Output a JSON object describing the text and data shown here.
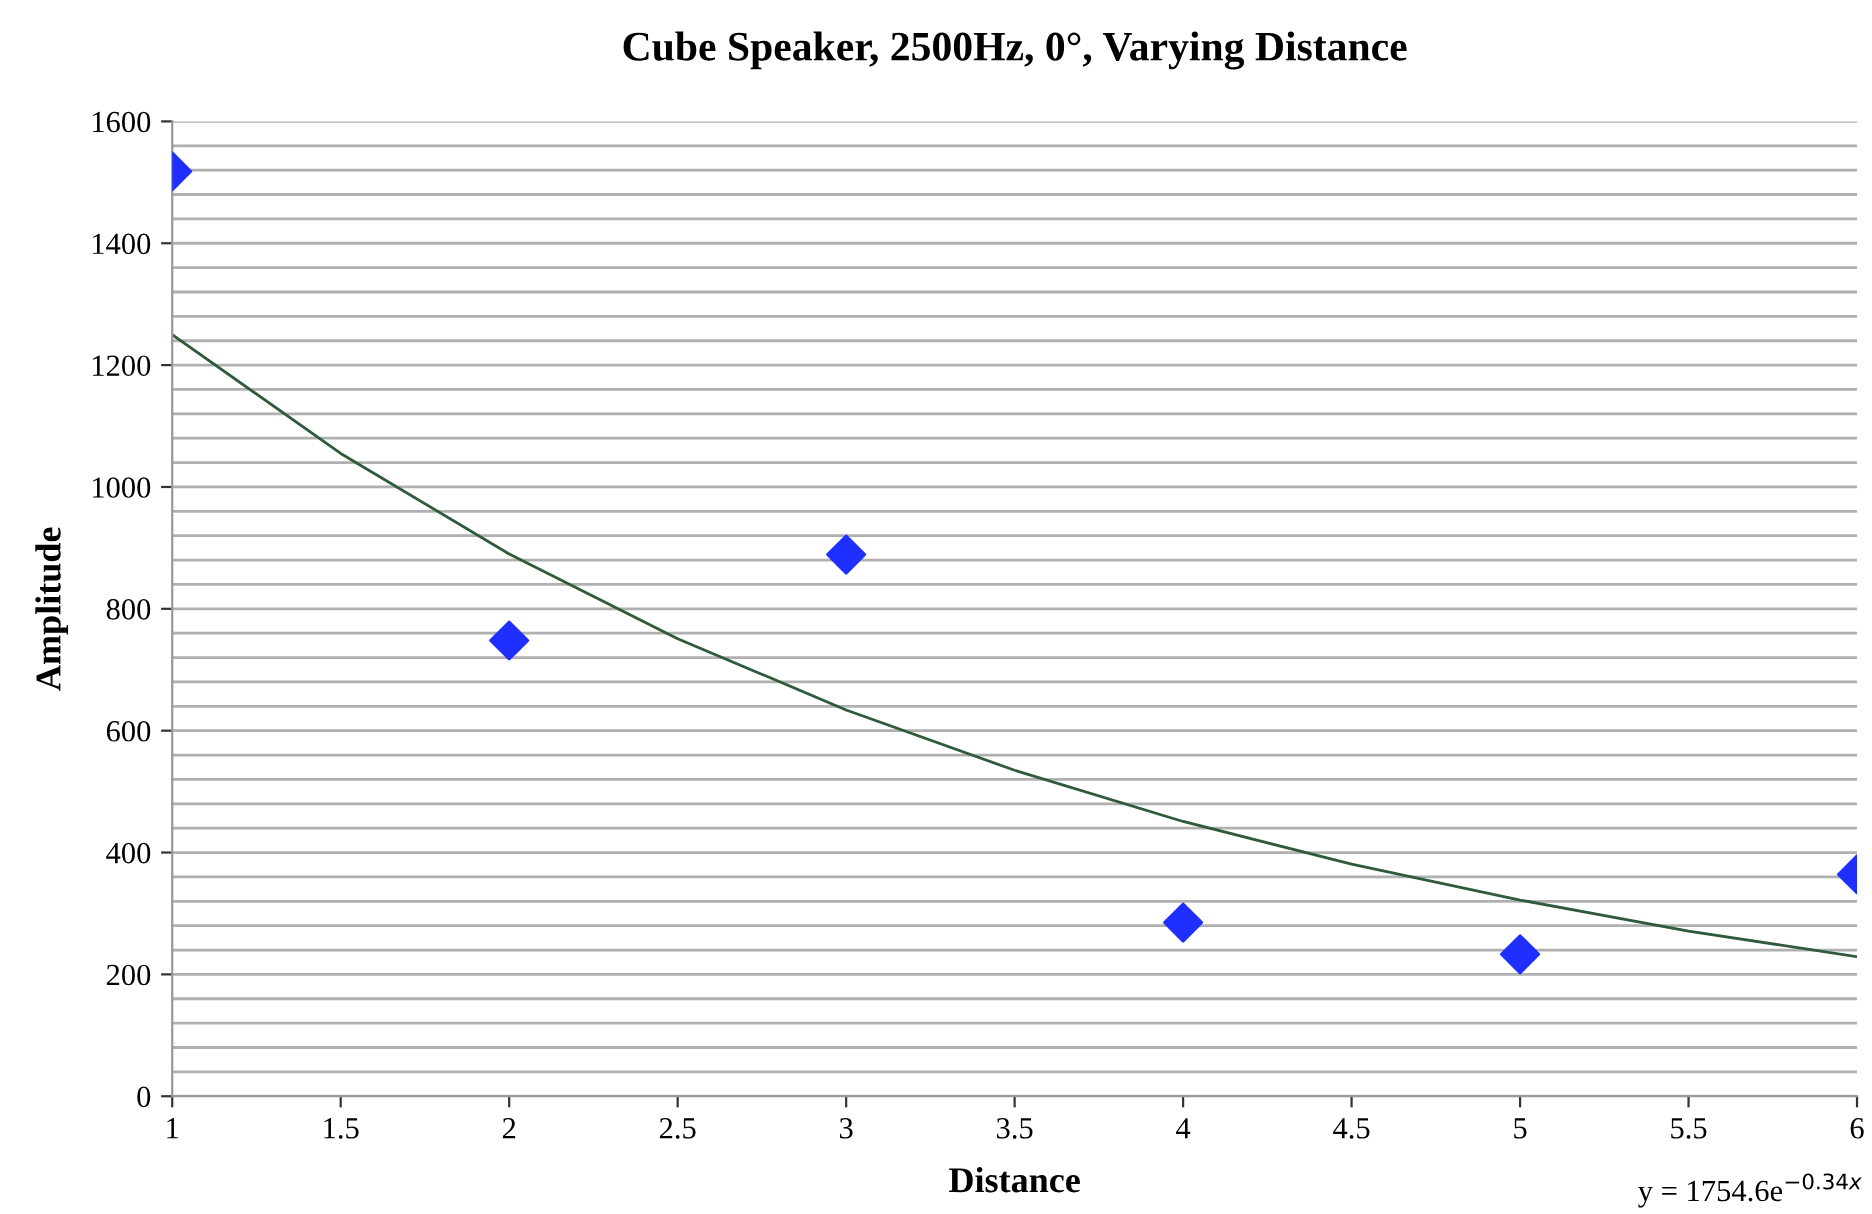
{
  "chart_data": {
    "type": "scatter",
    "title": "Cube Speaker, 2500Hz, 0°, Varying Distance",
    "xlabel": "Distance",
    "ylabel": "Amplitude",
    "annotations": [
      "y = 1754.6e$^{−0.34x}$"
    ],
    "x": [
      1,
      2,
      3,
      4,
      5,
      6
    ],
    "series": [
      {
        "color": "#1f2fff",
        "values": [
          1518,
          748,
          889,
          285,
          233,
          364
        ],
        "marker": "diamond"
      },
      {
        "type": "line",
        "color": "#2f5a3c",
        "x": [
          1,
          1.5,
          2,
          2.5,
          3,
          3.5,
          4,
          4.5,
          5,
          5.5,
          6
        ],
        "values": [
          1250,
          1055,
          890,
          751,
          634,
          535,
          451,
          381,
          322,
          271,
          229
        ],
        "marker": "none",
        "line_style": "solid"
      }
    ],
    "xlim": [
      1,
      6
    ],
    "ylim": [
      0,
      1600
    ],
    "xticks": [
      1,
      1.5,
      2,
      2.5,
      3,
      3.5,
      4,
      4.5,
      5,
      5.5,
      6
    ],
    "yticks": [
      0,
      {
        "value": 40,
        "label": null
      },
      {
        "value": 80,
        "label": null
      },
      {
        "value": 120,
        "label": null
      },
      {
        "value": 160,
        "label": null
      },
      200,
      {
        "value": 240,
        "label": null
      },
      {
        "value": 280,
        "label": null
      },
      {
        "value": 320,
        "label": null
      },
      {
        "value": 360,
        "label": null
      },
      400,
      {
        "value": 440,
        "label": null
      },
      {
        "value": 480,
        "label": null
      },
      {
        "value": 520,
        "label": null
      },
      {
        "value": 560,
        "label": null
      },
      600,
      {
        "value": 640,
        "label": null
      },
      {
        "value": 680,
        "label": null
      },
      {
        "value": 720,
        "label": null
      },
      {
        "value": 760,
        "label": null
      },
      800,
      {
        "value": 840,
        "label": null
      },
      {
        "value": 880,
        "label": null
      },
      {
        "value": 920,
        "label": null
      },
      {
        "value": 960,
        "label": null
      },
      1000,
      {
        "value": 1040,
        "label": null
      },
      {
        "value": 1080,
        "label": null
      },
      {
        "value": 1120,
        "label": null
      },
      {
        "value": 1160,
        "label": null
      },
      1200,
      {
        "value": 1240,
        "label": null
      },
      {
        "value": 1280,
        "label": null
      },
      {
        "value": 1320,
        "label": null
      },
      {
        "value": 1360,
        "label": null
      },
      1400,
      {
        "value": 1440,
        "label": null
      },
      {
        "value": 1480,
        "label": null
      },
      {
        "value": 1520,
        "label": null
      },
      {
        "value": 1560,
        "label": null
      },
      1600
    ],
    "grid": "y",
    "legend": false
  }
}
